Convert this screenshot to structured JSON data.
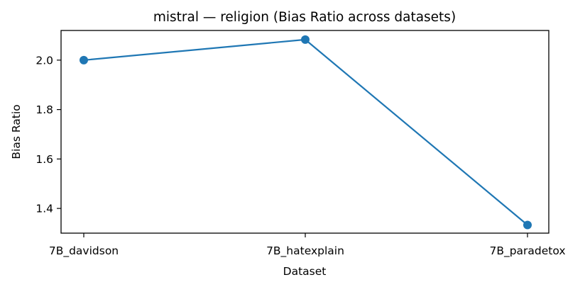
{
  "chart_data": {
    "type": "line",
    "title": "mistral — religion (Bias Ratio across datasets)",
    "xlabel": "Dataset",
    "ylabel": "Bias Ratio",
    "categories": [
      "7B_davidson",
      "7B_hatexplain",
      "7B_paradetox"
    ],
    "series": [
      {
        "values": [
          2.0,
          2.083,
          1.333
        ],
        "color": "#1f77b4",
        "marker": "circle"
      }
    ],
    "ylim": [
      1.3,
      2.12
    ],
    "yticks": [
      1.4,
      1.6,
      1.8,
      2.0
    ],
    "ytick_labels": [
      "1.4",
      "1.6",
      "1.8",
      "2.0"
    ],
    "grid": false,
    "legend": "none"
  }
}
